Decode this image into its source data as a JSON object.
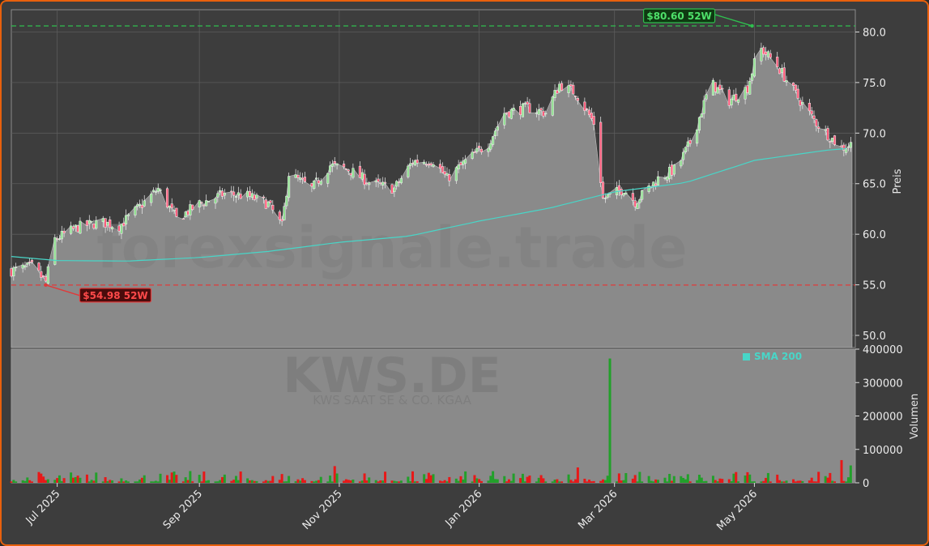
{
  "watermark": {
    "site": "forexsignale.trade",
    "ticker": "KWS.DE",
    "company": "KWS SAAT SE & CO. KGAA"
  },
  "legend": {
    "sma_label": "SMA 200"
  },
  "colors": {
    "frame": "#e8600c",
    "background": "#3d3d3d",
    "plot": "#8a8a8a",
    "up": "#22a02a",
    "down": "#e81818",
    "sma": "#48d6c8",
    "high_line": "#2fbf4f",
    "low_line": "#e03a3a"
  },
  "chart_data": {
    "type": "candlestick",
    "price_axis": {
      "label": "Preis",
      "ticks": [
        "50.0",
        "55.0",
        "60.0",
        "65.0",
        "70.0",
        "75.0",
        "80.0"
      ],
      "ylim": [
        48.8,
        82.2
      ]
    },
    "volume_axis": {
      "label": "Volumen",
      "ticks": [
        "0",
        "100000",
        "200000",
        "300000",
        "400000"
      ],
      "ylim": [
        0,
        400000
      ]
    },
    "x_axis": {
      "ticks": [
        "Jul 2025",
        "Sep 2025",
        "Nov 2025",
        "Jan 2026",
        "Mar 2026",
        "May 2026"
      ],
      "tick_dates": [
        "2025-07-01",
        "2025-09-01",
        "2025-11-01",
        "2026-01-01",
        "2026-03-01",
        "2026-05-01"
      ],
      "range": [
        "2025-06-11",
        "2026-06-14"
      ]
    },
    "annotations": [
      {
        "label": "$80.60 52W",
        "date": "2026-04-30",
        "value": 80.6,
        "kind": "52w-high"
      },
      {
        "label": "$54.98 52W",
        "date": "2025-06-26",
        "value": 54.98,
        "kind": "52w-low"
      }
    ],
    "close_anchors": [
      [
        "2025-06-11",
        56.4
      ],
      [
        "2025-06-20",
        56.8
      ],
      [
        "2025-06-26",
        55.3
      ],
      [
        "2025-06-30",
        59.5
      ],
      [
        "2025-07-10",
        60.7
      ],
      [
        "2025-07-20",
        61.2
      ],
      [
        "2025-07-28",
        60.8
      ],
      [
        "2025-08-05",
        62.5
      ],
      [
        "2025-08-14",
        64.5
      ],
      [
        "2025-08-22",
        61.5
      ],
      [
        "2025-09-01",
        63.0
      ],
      [
        "2025-09-12",
        64.0
      ],
      [
        "2025-09-22",
        63.8
      ],
      [
        "2025-10-01",
        63.0
      ],
      [
        "2025-10-07",
        60.8
      ],
      [
        "2025-10-10",
        66.0
      ],
      [
        "2025-10-20",
        64.5
      ],
      [
        "2025-10-28",
        66.8
      ],
      [
        "2025-11-05",
        66.4
      ],
      [
        "2025-11-15",
        65.0
      ],
      [
        "2025-11-25",
        64.5
      ],
      [
        "2025-12-03",
        67.2
      ],
      [
        "2025-12-12",
        67.3
      ],
      [
        "2025-12-18",
        65.5
      ],
      [
        "2025-12-26",
        67.2
      ],
      [
        "2026-01-05",
        69.0
      ],
      [
        "2026-01-12",
        72.0
      ],
      [
        "2026-01-22",
        72.5
      ],
      [
        "2026-01-30",
        72.0
      ],
      [
        "2026-02-05",
        74.8
      ],
      [
        "2026-02-12",
        74.0
      ],
      [
        "2026-02-20",
        71.0
      ],
      [
        "2026-02-24",
        63.5
      ],
      [
        "2026-03-05",
        64.5
      ],
      [
        "2026-03-10",
        63.2
      ],
      [
        "2026-03-20",
        65.5
      ],
      [
        "2026-03-28",
        66.5
      ],
      [
        "2026-04-04",
        69.5
      ],
      [
        "2026-04-12",
        75.0
      ],
      [
        "2026-04-20",
        73.2
      ],
      [
        "2026-04-28",
        74.5
      ],
      [
        "2026-05-03",
        78.5
      ],
      [
        "2026-05-10",
        77.0
      ],
      [
        "2026-05-20",
        73.5
      ],
      [
        "2026-05-28",
        71.0
      ],
      [
        "2026-06-08",
        68.5
      ],
      [
        "2026-06-12",
        68.9
      ]
    ],
    "sma200": [
      [
        "2025-06-11",
        57.8
      ],
      [
        "2025-07-01",
        57.4
      ],
      [
        "2025-08-01",
        57.35
      ],
      [
        "2025-09-01",
        57.7
      ],
      [
        "2025-10-01",
        58.3
      ],
      [
        "2025-11-01",
        59.2
      ],
      [
        "2025-12-01",
        59.8
      ],
      [
        "2026-01-01",
        61.3
      ],
      [
        "2026-02-01",
        62.6
      ],
      [
        "2026-03-01",
        64.2
      ],
      [
        "2026-04-01",
        65.1
      ],
      [
        "2026-05-01",
        67.3
      ],
      [
        "2026-06-01",
        68.3
      ],
      [
        "2026-06-12",
        68.5
      ]
    ],
    "volume_spikes": [
      [
        "2026-02-27",
        372000
      ],
      [
        "2026-06-08",
        68000
      ],
      [
        "2026-06-12",
        52000
      ],
      [
        "2025-10-30",
        50000
      ],
      [
        "2026-02-13",
        46000
      ]
    ]
  }
}
